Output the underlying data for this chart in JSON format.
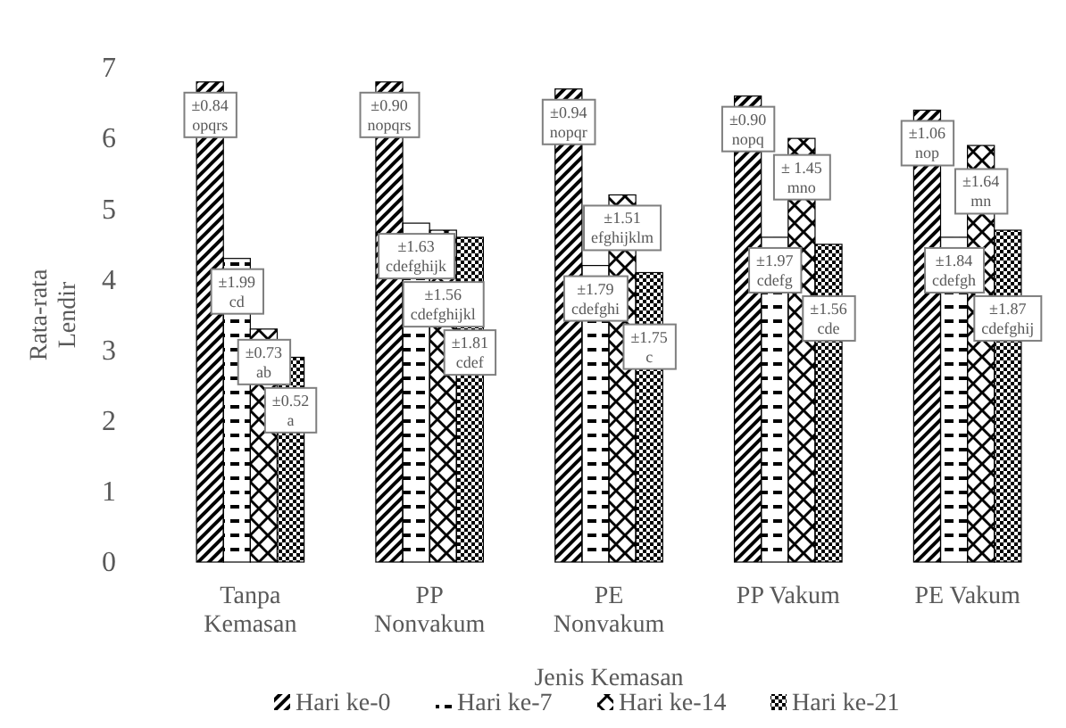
{
  "chart_data": {
    "type": "bar",
    "xlabel": "Jenis Kemasan",
    "ylabel": "Rata-rata\nLendir",
    "categories": [
      "Tanpa\nKemasan",
      "PP\nNonvakum",
      "PE\nNonvakum",
      "PP Vakum",
      "PE Vakum"
    ],
    "ylim": [
      0,
      7
    ],
    "yticks": [
      0,
      1,
      2,
      3,
      4,
      5,
      6,
      7
    ],
    "grid": false,
    "legend": "bottom",
    "series": [
      {
        "name": "Hari ke-0",
        "color": "#000000",
        "values": [
          6.8,
          6.8,
          6.7,
          6.6,
          6.4
        ]
      },
      {
        "name": "Hari ke-7",
        "color": "#000000",
        "values": [
          4.3,
          4.8,
          4.2,
          4.6,
          4.6
        ]
      },
      {
        "name": "Hari ke-14",
        "color": "#000000",
        "values": [
          3.3,
          4.7,
          5.2,
          6.0,
          5.9
        ]
      },
      {
        "name": "Hari ke-21",
        "color": "#000000",
        "values": [
          2.9,
          4.6,
          4.1,
          4.5,
          4.7
        ]
      }
    ],
    "annotations": [
      "±0.84\nopqrs",
      "±1.99\ncd",
      "±0.73\nab",
      "±0.52\na",
      "±0.90\nnopqrs",
      "±1.63\ncdefghijk",
      "±1.56\ncdefghijkl",
      "±1.81\ncdef",
      "±0.94\nnopqr",
      "±1.79\ncdefghi",
      "±1.51\nefghijklm",
      "±1.75\nc",
      "±0.90\nnopq",
      "±1.97\ncdefg",
      "± 1.45\nmno",
      "±1.56\ncde",
      "±1.06\nnop",
      "±1.84\ncdefgh",
      "±1.64\nmn",
      "±1.87\ncdefghij"
    ]
  }
}
